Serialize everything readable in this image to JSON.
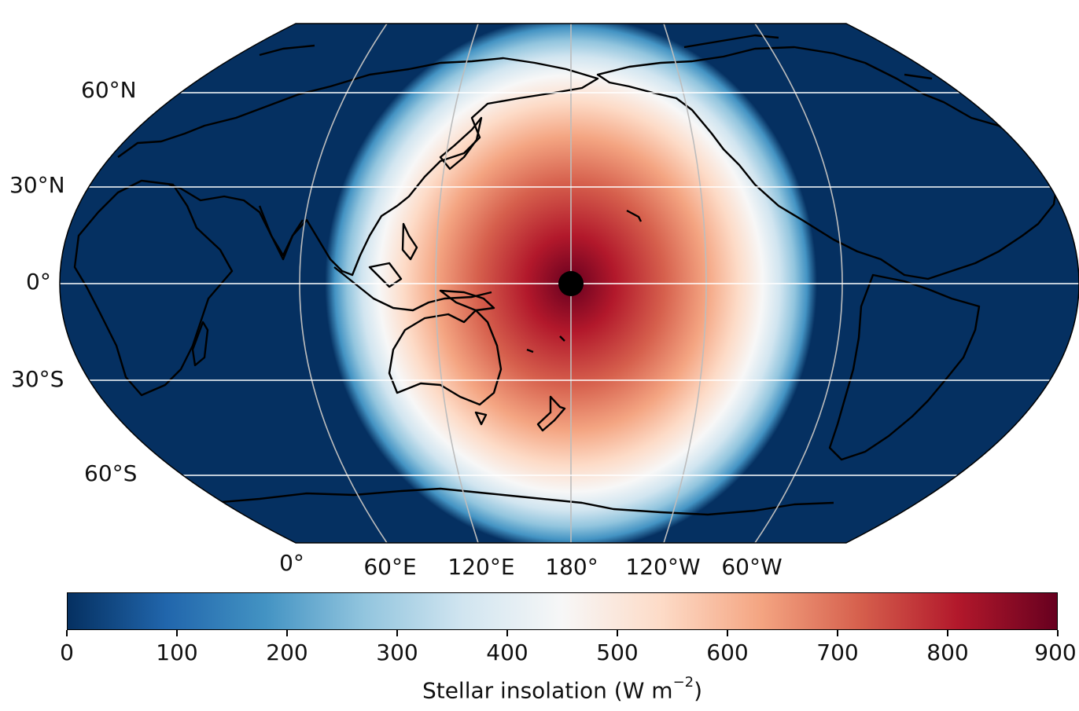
{
  "map": {
    "projection": "robinson",
    "central_longitude": 180,
    "substellar_point": {
      "lat": 0,
      "lon": 180
    },
    "max_insolation": 900,
    "ocean_color_low": "#053061",
    "coastline_color": "#000000",
    "gridline_color": "#bdbdbd"
  },
  "lat_labels": [
    "60°N",
    "30°N",
    "0°",
    "30°S",
    "60°S"
  ],
  "lon_labels": [
    "0°",
    "60°E",
    "120°E",
    "180°",
    "120°W",
    "60°W"
  ],
  "colorbar": {
    "colormap": "RdBu_r",
    "min": 0,
    "max": 900,
    "ticks": [
      "0",
      "100",
      "200",
      "300",
      "400",
      "500",
      "600",
      "700",
      "800",
      "900"
    ],
    "label_main": "Stellar insolation (W m",
    "label_exp": "−2",
    "label_end": ")",
    "colors": [
      "#053061",
      "#2166ac",
      "#4393c3",
      "#92c5de",
      "#d1e5f0",
      "#f7f7f7",
      "#fddbc7",
      "#f4a582",
      "#d6604d",
      "#b2182b",
      "#67001f"
    ]
  }
}
